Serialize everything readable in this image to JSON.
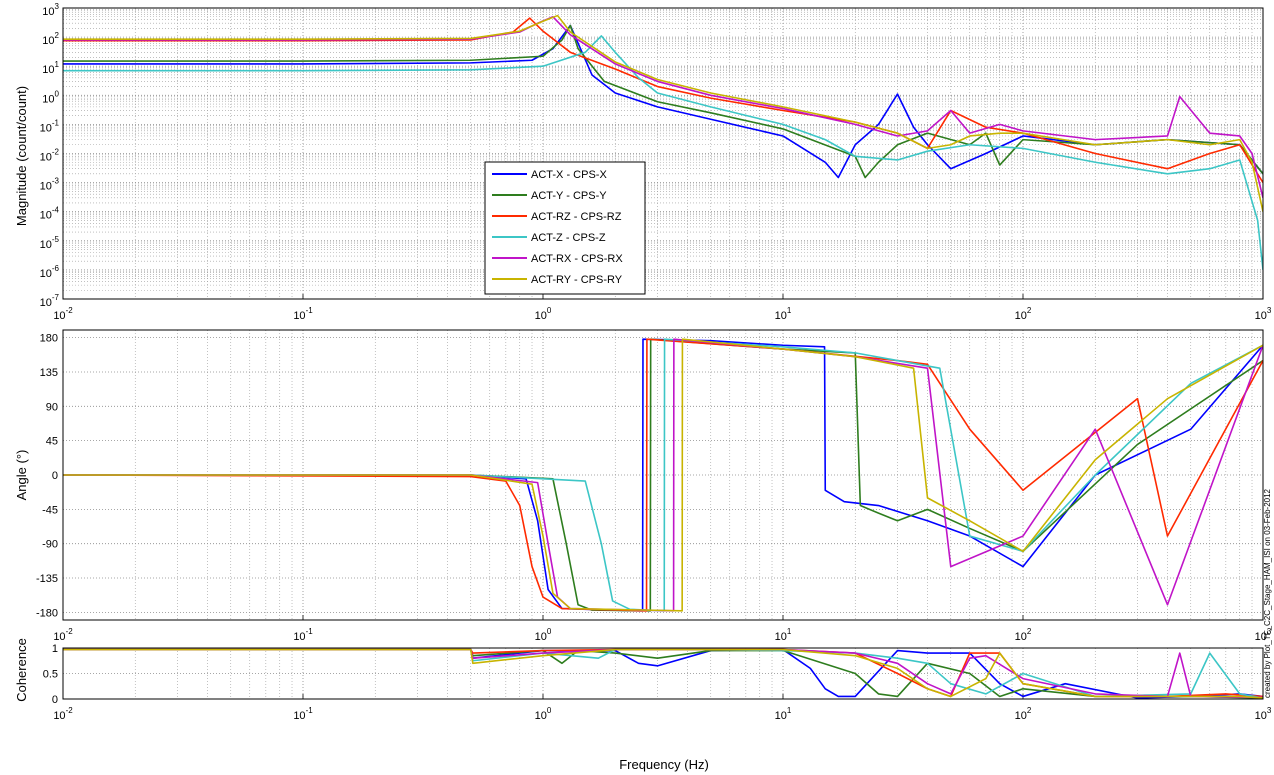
{
  "chart_data": [
    {
      "type": "line",
      "panel": "magnitude",
      "xscale": "log",
      "yscale": "log",
      "xlim": [
        0.01,
        1000
      ],
      "ylim": [
        1e-07,
        1000
      ],
      "xlabel": "",
      "ylabel": "Magnitude (count/count)",
      "x_ticks": [
        "10^-2",
        "10^-1",
        "10^0",
        "10^1",
        "10^2",
        "10^3"
      ],
      "y_ticks": [
        "10^-7",
        "10^-6",
        "10^-5",
        "10^-4",
        "10^-3",
        "10^-2",
        "10^-1",
        "10^0",
        "10^1",
        "10^2",
        "10^3"
      ],
      "grid": true,
      "legend_position": "center-left",
      "series": [
        {
          "name": "ACT-X - CPS-X",
          "color": "#0000ff",
          "x": [
            0.01,
            0.1,
            0.5,
            0.9,
            1.1,
            1.3,
            1.6,
            2,
            3,
            5,
            10,
            15,
            17,
            20,
            25,
            30,
            35,
            40,
            50,
            70,
            100,
            200,
            400,
            800,
            1000
          ],
          "y": [
            12,
            12,
            13,
            16,
            40,
            250,
            5,
            1.2,
            0.4,
            0.15,
            0.04,
            0.005,
            0.0015,
            0.02,
            0.1,
            1.1,
            0.08,
            0.02,
            0.003,
            0.01,
            0.04,
            0.02,
            0.03,
            0.02,
            0.002
          ]
        },
        {
          "name": "ACT-Y - CPS-Y",
          "color": "#2e7d1e",
          "x": [
            0.01,
            0.1,
            0.5,
            1.0,
            1.2,
            1.3,
            1.4,
            1.8,
            3,
            5,
            10,
            20,
            22,
            25,
            30,
            40,
            60,
            70,
            80,
            100,
            200,
            400,
            800,
            1000
          ],
          "y": [
            15,
            15,
            16,
            22,
            80,
            250,
            40,
            3,
            0.6,
            0.25,
            0.07,
            0.008,
            0.0015,
            0.005,
            0.02,
            0.05,
            0.02,
            0.05,
            0.004,
            0.03,
            0.02,
            0.03,
            0.02,
            0.002
          ]
        },
        {
          "name": "ACT-RZ - CPS-RZ",
          "color": "#ff2a00",
          "x": [
            0.01,
            0.1,
            0.5,
            0.75,
            0.88,
            1.0,
            1.3,
            2,
            3,
            5,
            10,
            20,
            30,
            40,
            50,
            70,
            100,
            200,
            400,
            600,
            800,
            1000
          ],
          "y": [
            75,
            75,
            80,
            150,
            450,
            160,
            30,
            8,
            2,
            0.8,
            0.3,
            0.12,
            0.05,
            0.015,
            0.3,
            0.08,
            0.05,
            0.01,
            0.003,
            0.01,
            0.02,
            0.001
          ]
        },
        {
          "name": "ACT-Z - CPS-Z",
          "color": "#3cc6c6",
          "x": [
            0.01,
            0.1,
            0.5,
            1.0,
            1.5,
            1.75,
            2.0,
            2.5,
            3,
            5,
            10,
            15,
            20,
            30,
            40,
            60,
            100,
            200,
            400,
            600,
            800,
            950,
            1000
          ],
          "y": [
            7,
            7,
            7.5,
            10,
            30,
            110,
            30,
            4,
            1.2,
            0.4,
            0.1,
            0.03,
            0.008,
            0.006,
            0.012,
            0.02,
            0.015,
            0.005,
            0.002,
            0.003,
            0.006,
            5e-05,
            1e-06
          ]
        },
        {
          "name": "ACT-RX - CPS-RX",
          "color": "#c014c8",
          "x": [
            0.01,
            0.1,
            0.5,
            0.8,
            0.95,
            1.1,
            1.3,
            2,
            3,
            5,
            10,
            20,
            30,
            40,
            50,
            60,
            80,
            100,
            200,
            400,
            450,
            600,
            800,
            900,
            1000
          ],
          "y": [
            80,
            80,
            85,
            150,
            300,
            500,
            120,
            12,
            3,
            1,
            0.35,
            0.1,
            0.04,
            0.06,
            0.3,
            0.05,
            0.1,
            0.06,
            0.03,
            0.04,
            0.9,
            0.05,
            0.04,
            0.01,
            0.0003
          ]
        },
        {
          "name": "ACT-RY - CPS-RY",
          "color": "#c8b400",
          "x": [
            0.01,
            0.1,
            0.5,
            0.8,
            1.0,
            1.15,
            1.3,
            2,
            3,
            5,
            10,
            20,
            30,
            40,
            50,
            60,
            80,
            100,
            200,
            400,
            600,
            800,
            900,
            1000
          ],
          "y": [
            85,
            85,
            90,
            160,
            350,
            550,
            150,
            14,
            3.5,
            1.2,
            0.4,
            0.12,
            0.05,
            0.015,
            0.02,
            0.04,
            0.05,
            0.05,
            0.02,
            0.03,
            0.02,
            0.03,
            0.005,
            0.0001
          ]
        }
      ]
    },
    {
      "type": "line",
      "panel": "phase",
      "xscale": "log",
      "xlim": [
        0.01,
        1000
      ],
      "ylim": [
        -190,
        190
      ],
      "xlabel": "",
      "ylabel": "Angle (°)",
      "x_ticks": [
        "10^-2",
        "10^-1",
        "10^0",
        "10^1",
        "10^2",
        "10^3"
      ],
      "y_ticks": [
        "-180",
        "-135",
        "-90",
        "-45",
        "0",
        "45",
        "90",
        "135",
        "180"
      ],
      "grid": true,
      "series": [
        {
          "name": "ACT-X - CPS-X",
          "color": "#0000ff",
          "x": [
            0.01,
            0.5,
            0.85,
            0.95,
            1.05,
            1.2,
            2.5,
            2.6,
            2.61,
            5,
            10,
            14.9,
            15,
            18,
            25,
            40,
            60,
            100,
            200,
            500,
            1000
          ],
          "y": [
            0,
            0,
            -5,
            -60,
            -150,
            -175,
            -178,
            -178,
            178,
            176,
            170,
            168,
            -20,
            -35,
            -40,
            -60,
            -80,
            -120,
            0,
            60,
            170
          ]
        },
        {
          "name": "ACT-Y - CPS-Y",
          "color": "#2e7d1e",
          "x": [
            0.01,
            0.5,
            1.1,
            1.25,
            1.4,
            1.6,
            2.8,
            2.81,
            10,
            20,
            21,
            25,
            30,
            40,
            60,
            100,
            300,
            1000
          ],
          "y": [
            0,
            0,
            -5,
            -90,
            -170,
            -177,
            -178,
            178,
            165,
            160,
            -40,
            -50,
            -60,
            -45,
            -70,
            -100,
            40,
            150
          ]
        },
        {
          "name": "ACT-RZ - CPS-RZ",
          "color": "#ff2a00",
          "x": [
            0.01,
            0.5,
            0.7,
            0.8,
            0.9,
            1.0,
            1.2,
            2.7,
            2.71,
            10,
            30,
            40,
            60,
            100,
            300,
            400,
            1000
          ],
          "y": [
            0,
            -2,
            -8,
            -40,
            -120,
            -160,
            -175,
            -178,
            178,
            165,
            150,
            145,
            60,
            -20,
            100,
            -80,
            150
          ]
        },
        {
          "name": "ACT-Z - CPS-Z",
          "color": "#3cc6c6",
          "x": [
            0.01,
            0.5,
            1.5,
            1.75,
            1.95,
            2.3,
            3.2,
            3.21,
            10,
            20,
            30,
            45,
            60,
            100,
            200,
            500,
            1000
          ],
          "y": [
            0,
            0,
            -8,
            -90,
            -165,
            -176,
            -178,
            178,
            168,
            160,
            150,
            140,
            -80,
            -100,
            0,
            120,
            170
          ]
        },
        {
          "name": "ACT-RX - CPS-RX",
          "color": "#c014c8",
          "x": [
            0.01,
            0.5,
            0.95,
            1.05,
            1.15,
            1.3,
            3.5,
            3.51,
            10,
            20,
            40,
            50,
            100,
            200,
            400,
            1000
          ],
          "y": [
            0,
            0,
            -10,
            -90,
            -160,
            -175,
            -178,
            178,
            165,
            155,
            140,
            -120,
            -80,
            60,
            -170,
            170
          ]
        },
        {
          "name": "ACT-RY - CPS-RY",
          "color": "#c8b400",
          "x": [
            0.01,
            0.5,
            0.9,
            1.0,
            1.1,
            1.3,
            3.8,
            3.81,
            10,
            20,
            35,
            40,
            60,
            100,
            200,
            400,
            1000
          ],
          "y": [
            0,
            0,
            -12,
            -80,
            -155,
            -175,
            -178,
            178,
            165,
            155,
            140,
            -30,
            -60,
            -100,
            20,
            100,
            170
          ]
        }
      ]
    },
    {
      "type": "line",
      "panel": "coherence",
      "xscale": "log",
      "xlim": [
        0.01,
        1000
      ],
      "ylim": [
        0,
        1
      ],
      "xlabel": "Frequency (Hz)",
      "ylabel": "Coherence",
      "x_ticks": [
        "10^-2",
        "10^-1",
        "10^0",
        "10^1",
        "10^2",
        "10^3"
      ],
      "y_ticks": [
        "0",
        "0.5",
        "1"
      ],
      "grid": true,
      "series": [
        {
          "name": "ACT-X - CPS-X",
          "color": "#0000ff",
          "x": [
            0.01,
            0.5,
            0.51,
            1,
            2,
            2.5,
            3,
            5,
            10,
            13,
            15,
            17,
            20,
            30,
            40,
            60,
            80,
            100,
            150,
            300,
            500,
            800,
            1000
          ],
          "y": [
            0.97,
            0.97,
            0.8,
            0.95,
            0.95,
            0.7,
            0.65,
            0.95,
            0.97,
            0.6,
            0.2,
            0.05,
            0.05,
            0.95,
            0.9,
            0.9,
            0.3,
            0.05,
            0.3,
            0.02,
            0.05,
            0.1,
            0.05
          ]
        },
        {
          "name": "ACT-Y - CPS-Y",
          "color": "#2e7d1e",
          "x": [
            0.01,
            0.5,
            0.51,
            1,
            1.2,
            1.4,
            2,
            3,
            5,
            10,
            20,
            25,
            30,
            40,
            60,
            80,
            100,
            200,
            500,
            1000
          ],
          "y": [
            0.97,
            0.97,
            0.85,
            0.95,
            0.7,
            0.95,
            0.9,
            0.8,
            0.95,
            0.95,
            0.5,
            0.1,
            0.05,
            0.7,
            0.5,
            0.05,
            0.2,
            0.05,
            0.05,
            0.02
          ]
        },
        {
          "name": "ACT-RZ - CPS-RZ",
          "color": "#ff2a00",
          "x": [
            0.01,
            0.5,
            0.51,
            1,
            2,
            10,
            20,
            30,
            40,
            50,
            60,
            80,
            100,
            200,
            400,
            700,
            1000
          ],
          "y": [
            0.97,
            0.97,
            0.9,
            0.95,
            0.97,
            0.97,
            0.9,
            0.5,
            0.2,
            0.05,
            0.9,
            0.9,
            0.3,
            0.05,
            0.05,
            0.1,
            0.05
          ]
        },
        {
          "name": "ACT-Z - CPS-Z",
          "color": "#3cc6c6",
          "x": [
            0.01,
            0.5,
            0.51,
            1,
            1.7,
            2,
            5,
            10,
            20,
            30,
            40,
            50,
            70,
            100,
            200,
            500,
            600,
            800,
            1000
          ],
          "y": [
            0.97,
            0.97,
            0.75,
            0.9,
            0.8,
            0.97,
            0.97,
            0.95,
            0.9,
            0.8,
            0.7,
            0.3,
            0.1,
            0.5,
            0.05,
            0.1,
            0.9,
            0.1,
            0.02
          ]
        },
        {
          "name": "ACT-RX - CPS-RX",
          "color": "#c014c8",
          "x": [
            0.01,
            0.5,
            0.51,
            1,
            2,
            10,
            20,
            30,
            40,
            50,
            60,
            70,
            100,
            200,
            400,
            450,
            500,
            1000
          ],
          "y": [
            0.97,
            0.97,
            0.8,
            0.9,
            0.97,
            0.97,
            0.9,
            0.7,
            0.3,
            0.1,
            0.8,
            0.85,
            0.4,
            0.1,
            0.05,
            0.9,
            0.05,
            0.03
          ]
        },
        {
          "name": "ACT-RY - CPS-RY",
          "color": "#c8b400",
          "x": [
            0.01,
            0.5,
            0.51,
            1,
            2,
            10,
            20,
            30,
            40,
            50,
            70,
            80,
            100,
            200,
            400,
            800,
            1000
          ],
          "y": [
            0.97,
            0.97,
            0.7,
            0.85,
            0.97,
            0.97,
            0.85,
            0.6,
            0.2,
            0.05,
            0.4,
            0.9,
            0.3,
            0.05,
            0.05,
            0.05,
            0.02
          ]
        }
      ]
    }
  ],
  "credit": "created by Plot_TF_C2C_Stage_HAM_ISI on 03-Feb-2012"
}
